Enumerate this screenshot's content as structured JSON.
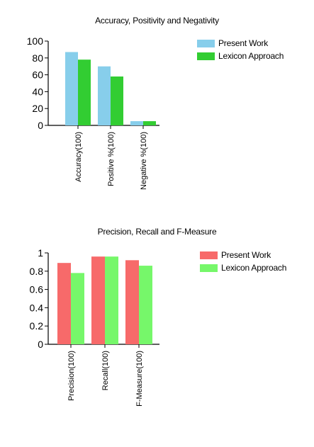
{
  "chart_data": [
    {
      "type": "bar",
      "title": "Accuracy, Positivity and Negativity",
      "categories": [
        "Accuracy(100)",
        "Positive %(100)",
        "Negative %(100)"
      ],
      "series": [
        {
          "name": "Present Work",
          "values": [
            87,
            70,
            5
          ],
          "color": "#87ceeb"
        },
        {
          "name": "Lexicon Approach",
          "values": [
            78,
            58,
            5
          ],
          "color": "#32cd32"
        }
      ],
      "ylim": [
        0,
        100
      ],
      "yticks": [
        "0",
        "20",
        "40",
        "60",
        "80",
        "100"
      ],
      "ytick_values": [
        0,
        20,
        40,
        60,
        80,
        100
      ],
      "legend_position": "top-right",
      "grid": false
    },
    {
      "type": "bar",
      "title": "Precision, Recall and F-Measure",
      "categories": [
        "Precision(100)",
        "Recall(100)",
        "F-Measure(100)"
      ],
      "series": [
        {
          "name": "Present Work",
          "values": [
            0.89,
            0.96,
            0.92
          ],
          "color": "#f76a6a"
        },
        {
          "name": "Lexicon Approach",
          "values": [
            0.78,
            0.96,
            0.86
          ],
          "color": "#76f76a"
        }
      ],
      "ylim": [
        0,
        1
      ],
      "yticks": [
        "0",
        "0.2",
        "0.4",
        "0.6",
        "0.8",
        "1"
      ],
      "ytick_values": [
        0,
        0.2,
        0.4,
        0.6,
        0.8,
        1
      ],
      "legend_position": "top-right",
      "grid": false
    }
  ]
}
